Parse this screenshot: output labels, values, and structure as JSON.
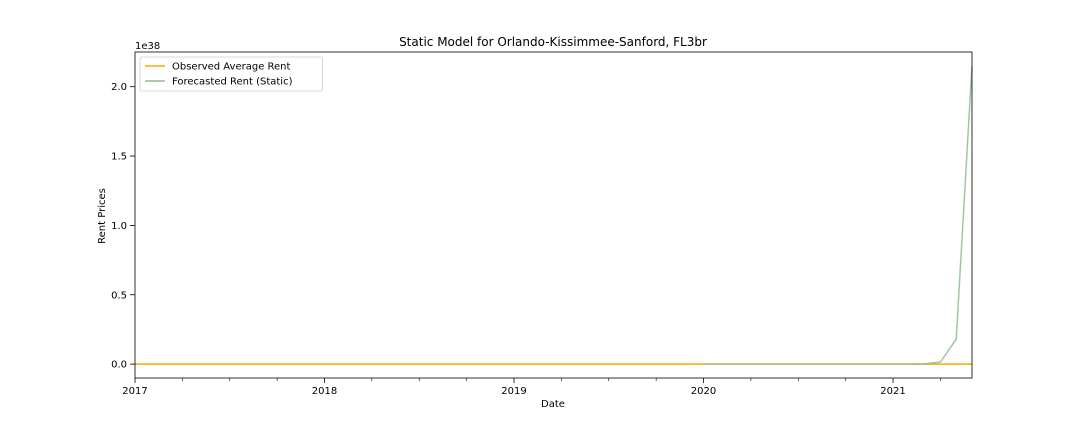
{
  "chart_data": {
    "type": "line",
    "title": "Static Model for Orlando-Kissimmee-Sanford, FL3br",
    "xlabel": "Date",
    "ylabel": "Rent Prices",
    "y_offset_text": "1e38",
    "xlim": [
      "2017-01",
      "2021-06"
    ],
    "ylim": [
      -0.1,
      2.25
    ],
    "x_ticks": [
      {
        "x": "2017-01",
        "label": "2017"
      },
      {
        "x": "2018-01",
        "label": "2018"
      },
      {
        "x": "2019-01",
        "label": "2019"
      },
      {
        "x": "2020-01",
        "label": "2020"
      },
      {
        "x": "2021-01",
        "label": "2021"
      }
    ],
    "x_minor_ticks": [
      "2017-04",
      "2017-07",
      "2017-10",
      "2018-04",
      "2018-07",
      "2018-10",
      "2019-04",
      "2019-07",
      "2019-10",
      "2020-04",
      "2020-07",
      "2020-10",
      "2021-04"
    ],
    "y_ticks": [
      0.0,
      0.5,
      1.0,
      1.5,
      2.0
    ],
    "y_tick_labels": [
      "0.0",
      "0.5",
      "1.0",
      "1.5",
      "2.0"
    ],
    "legend_position": "upper-left",
    "grid": false,
    "series": [
      {
        "name": "Observed Average Rent",
        "color": "#ffa500",
        "x": [
          "2017-01",
          "2021-06"
        ],
        "y": [
          0.0,
          0.0
        ]
      },
      {
        "name": "Forecasted Rent (Static)",
        "color": "#8fbc8f",
        "x": [
          "2020-01",
          "2020-02",
          "2020-03",
          "2020-04",
          "2020-05",
          "2020-06",
          "2020-07",
          "2020-08",
          "2020-09",
          "2020-10",
          "2020-11",
          "2020-12",
          "2021-01",
          "2021-02",
          "2021-03",
          "2021-04",
          "2021-05",
          "2021-06"
        ],
        "y": [
          0,
          0,
          0,
          0,
          0,
          0,
          0,
          0,
          0,
          0,
          0,
          0,
          0,
          0,
          0.002,
          0.015,
          0.18,
          2.15
        ]
      }
    ]
  }
}
